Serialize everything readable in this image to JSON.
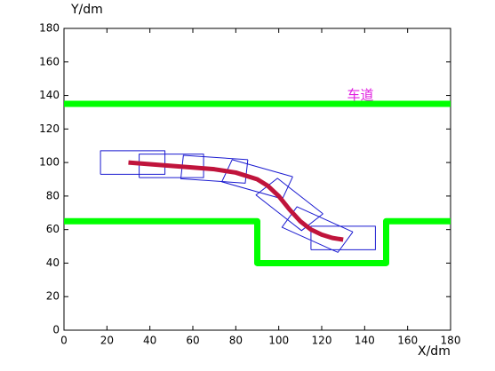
{
  "chart_data": {
    "type": "line",
    "y_label": "Y/dm",
    "x_label": "X/dm",
    "xlim": [
      0,
      180
    ],
    "ylim": [
      0,
      180
    ],
    "xticks": [
      0,
      20,
      40,
      60,
      80,
      100,
      120,
      140,
      160,
      180
    ],
    "yticks": [
      0,
      20,
      40,
      60,
      80,
      100,
      120,
      140,
      160,
      180
    ],
    "grid": false,
    "annotation": {
      "text": "车道",
      "x": 138,
      "y": 140,
      "color": "#e020e0"
    },
    "series": [
      {
        "color": "#00ff00",
        "width": 7,
        "x": [
          0,
          180
        ],
        "values": [
          135,
          135
        ]
      },
      {
        "color": "#00ff00",
        "width": 7,
        "x": [
          0,
          90,
          90,
          150,
          150,
          180
        ],
        "values": [
          65,
          65,
          40,
          40,
          65,
          65
        ]
      },
      {
        "color": "#1a1ad0",
        "width": 1,
        "x": [
          17,
          47,
          47,
          17,
          17,
          null,
          35,
          65,
          65,
          35,
          35,
          null,
          85.6,
          84.4,
          54.4,
          55.6,
          85.6,
          null,
          106.5,
          101.7,
          73.5,
          78.3,
          106.5,
          null,
          120.6,
          110.6,
          89.4,
          99.4,
          120.6,
          null,
          134.5,
          127.5,
          101.5,
          108.5,
          134.5,
          null,
          115,
          145,
          145,
          115,
          115
        ],
        "values": [
          93,
          93,
          107,
          107,
          93,
          null,
          91,
          91,
          105,
          105,
          91,
          null,
          101.7,
          87.7,
          90.3,
          104.3,
          101.7,
          null,
          91.5,
          78.3,
          88.5,
          101.7,
          91.5,
          null,
          69.4,
          59.4,
          80.6,
          90.6,
          69.4,
          null,
          58.6,
          46.4,
          61.4,
          73.6,
          58.6,
          null,
          48,
          48,
          62,
          62,
          48
        ]
      },
      {
        "color": "#c0143c",
        "width": 5,
        "x": [
          30,
          40,
          50,
          60,
          70,
          80,
          90,
          95,
          100,
          105,
          110,
          115,
          120,
          125,
          130
        ],
        "values": [
          100,
          99,
          98,
          97,
          96,
          94,
          90,
          86,
          80,
          72,
          65,
          60,
          57,
          55,
          54
        ]
      }
    ]
  }
}
